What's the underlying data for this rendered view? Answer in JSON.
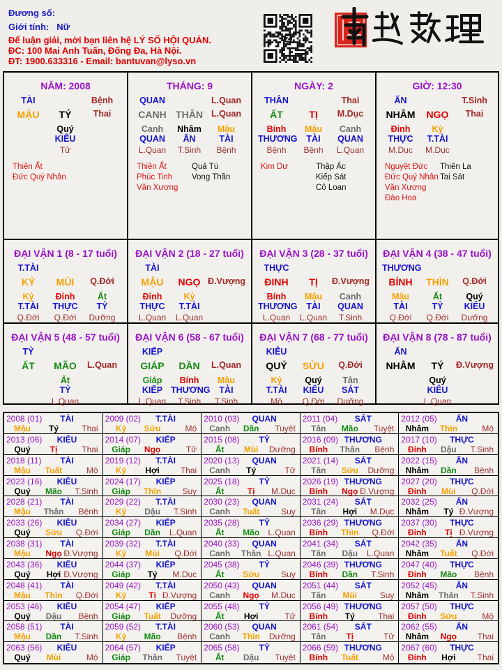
{
  "header": {
    "duong_so_label": "Đương số:",
    "gioi_tinh_label": "Giới tính:",
    "gioi_tinh_value": "Nữ",
    "contact_line1": "Để luận giải, mời bạn liên hệ LÝ SỐ HỘI QUÁN.",
    "contact_line2": "ĐC: 100 Mai Anh Tuấn, Đống Đa, Hà Nội.",
    "contact_line3": "ĐT: 1900.633316 - Email: bantuvan@lyso.vn",
    "logo_text": "南越數理",
    "qr_icon": "qr-code-icon"
  },
  "colors": {
    "title": "#9a12c8",
    "god": "#1414d0",
    "stage": "#a02828",
    "star_good": "#d81414",
    "elements": {
      "giáp": "#138a13",
      "ất": "#138a13",
      "bính": "#e00000",
      "đinh": "#e00000",
      "mậu": "#f5a000",
      "kỷ": "#f5a000",
      "canh": "#6e6e6e",
      "tân": "#6e6e6e",
      "nhâm": "#000000",
      "quý": "#000000",
      "tý": "#000000",
      "sửu": "#f5a000",
      "dần": "#138a13",
      "mão": "#138a13",
      "thìn": "#f5a000",
      "tị": "#e00000",
      "ngọ": "#e00000",
      "mùi": "#f5a000",
      "thân": "#6e6e6e",
      "dậu": "#6e6e6e",
      "tuất": "#f5a000",
      "hợi": "#000000"
    }
  },
  "pillars": [
    {
      "title": "NĂM: 2008",
      "god": "TÀI",
      "top_stage": "Bệnh",
      "stem": "MẬU",
      "branch": "TÝ",
      "stage": "Thai",
      "hidden": [
        {
          "stem": "Quý",
          "god": "KIÊU",
          "stage": "Tử"
        }
      ],
      "stars_left": [
        "Thiên Ất",
        "Đức Quý Nhân"
      ],
      "stars_right": []
    },
    {
      "title": "THÁNG: 9",
      "god": "QUAN",
      "top_stage": "L.Quan",
      "stem": "CANH",
      "branch": "THÂN",
      "stage": "L.Quan",
      "hidden": [
        {
          "stem": "Canh",
          "god": "QUAN",
          "stage": "L.Quan"
        },
        {
          "stem": "Nhâm",
          "god": "ẤN",
          "stage": "T.Sinh"
        },
        {
          "stem": "Mậu",
          "god": "TÀI",
          "stage": "Bệnh"
        }
      ],
      "stars_left": [
        "Thiên Ất",
        "Phúc Tinh",
        "Văn Xương"
      ],
      "stars_right": [
        "Quả Tú",
        "Vong Thần"
      ]
    },
    {
      "title": "NGÀY: 2",
      "god": "THÂN",
      "top_stage": "Thai",
      "stem": "ẤT",
      "branch": "TỊ",
      "stage": "M.Dục",
      "hidden": [
        {
          "stem": "Bính",
          "god": "THƯƠNG",
          "stage": "Bệnh"
        },
        {
          "stem": "Mậu",
          "god": "TÀI",
          "stage": "Bệnh"
        },
        {
          "stem": "Canh",
          "god": "QUAN",
          "stage": "L.Quan"
        }
      ],
      "stars_left": [
        "Kim Dư"
      ],
      "stars_right": [
        "Thập Ác",
        "Kiếp Sát",
        "Cô Loan"
      ]
    },
    {
      "title": "GIỜ: 12:30",
      "god": "ẤN",
      "top_stage": "T.Sinh",
      "stem": "NHÂM",
      "branch": "NGỌ",
      "stage": "Thai",
      "hidden": [
        {
          "stem": "Đinh",
          "god": "THỰC",
          "stage": "M.Dục"
        },
        {
          "stem": "Kỷ",
          "god": "T.TÀI",
          "stage": "M.Dục"
        }
      ],
      "stars_left": [
        "Nguyệt Đức",
        "Đức Quý Nhân",
        "Văn Xương",
        "Đào Hoa"
      ],
      "stars_right": [
        "Thiên La",
        "Tai Sát"
      ]
    }
  ],
  "dai_van": [
    {
      "title": "ĐẠI VẬN 1 (8 - 17 tuổi)",
      "god": "T.TÀI",
      "stem": "KỶ",
      "branch": "MÙI",
      "stage": "Q.Đới",
      "hidden": [
        {
          "stem": "Kỷ",
          "god": "T.TÀI",
          "stage": "Q.Đới"
        },
        {
          "stem": "Đinh",
          "god": "THỰC",
          "stage": "Q.Đới"
        },
        {
          "stem": "Ất",
          "god": "TỶ",
          "stage": "Dưỡng"
        }
      ]
    },
    {
      "title": "ĐẠI VẬN 2 (18 - 27 tuổi)",
      "god": "TÀI",
      "stem": "MẬU",
      "branch": "NGỌ",
      "stage": "Đ.Vượng",
      "hidden": [
        {
          "stem": "Đinh",
          "god": "THỰC",
          "stage": "L.Quan"
        },
        {
          "stem": "Kỷ",
          "god": "T.TÀI",
          "stage": "L.Quan"
        }
      ]
    },
    {
      "title": "ĐẠI VẬN 3 (28 - 37 tuổi)",
      "god": "THỰC",
      "stem": "ĐINH",
      "branch": "TỊ",
      "stage": "Đ.Vượng",
      "hidden": [
        {
          "stem": "Bính",
          "god": "THƯƠNG",
          "stage": "L.Quan"
        },
        {
          "stem": "Mậu",
          "god": "TÀI",
          "stage": "L.Quan"
        },
        {
          "stem": "Canh",
          "god": "QUAN",
          "stage": "T.Sinh"
        }
      ]
    },
    {
      "title": "ĐẠI VẬN 4 (38 - 47 tuổi)",
      "god": "THƯƠNG",
      "stem": "BÍNH",
      "branch": "THÌN",
      "stage": "Q.Đới",
      "hidden": [
        {
          "stem": "Mậu",
          "god": "TÀI",
          "stage": "Q.Đới"
        },
        {
          "stem": "Ất",
          "god": "TỶ",
          "stage": "Q.Đới"
        },
        {
          "stem": "Quý",
          "god": "KIÊU",
          "stage": "Dưỡng"
        }
      ]
    },
    {
      "title": "ĐẠI VẬN 5 (48 - 57 tuổi)",
      "god": "TỶ",
      "stem": "ẤT",
      "branch": "MÃO",
      "stage": "L.Quan",
      "hidden": [
        {
          "stem": "Ất",
          "god": "TỶ",
          "stage": "L.Quan"
        }
      ]
    },
    {
      "title": "ĐẠI VẬN 6 (58 - 67 tuổi)",
      "god": "KIẾP",
      "stem": "GIÁP",
      "branch": "DẦN",
      "stage": "L.Quan",
      "hidden": [
        {
          "stem": "Giáp",
          "god": "KIẾP",
          "stage": "L.Quan"
        },
        {
          "stem": "Bính",
          "god": "THƯƠNG",
          "stage": "T.Sinh"
        },
        {
          "stem": "Mậu",
          "god": "TÀI",
          "stage": "T.Sinh"
        }
      ]
    },
    {
      "title": "ĐẠI VẬN 7 (68 - 77 tuổi)",
      "god": "KIÊU",
      "stem": "QUÝ",
      "branch": "SỬU",
      "stage": "Q.Đới",
      "hidden": [
        {
          "stem": "Kỷ",
          "god": "T.TÀI",
          "stage": "Mộ"
        },
        {
          "stem": "Quý",
          "god": "KIÊU",
          "stage": "Q.Đới"
        },
        {
          "stem": "Tân",
          "god": "SÁT",
          "stage": "Dưỡng"
        }
      ]
    },
    {
      "title": "ĐẠI VẬN 8 (78 - 87 tuổi)",
      "god": "ẤN",
      "stem": "NHÂM",
      "branch": "TÝ",
      "stage": "Đ.Vượng",
      "hidden": [
        {
          "stem": "Quý",
          "god": "KIÊU",
          "stage": "L.Quan"
        }
      ]
    }
  ],
  "annual": [
    [
      "2008 (01)",
      "TÀI",
      "Mậu",
      "Tý",
      "Thai"
    ],
    [
      "2009 (02)",
      "T.TÀI",
      "Kỷ",
      "Sửu",
      "Mộ"
    ],
    [
      "2010 (03)",
      "QUAN",
      "Canh",
      "Dần",
      "Tuyệt"
    ],
    [
      "2011 (04)",
      "SÁT",
      "Tân",
      "Mão",
      "Tuyệt"
    ],
    [
      "2012 (05)",
      "ẤN",
      "Nhâm",
      "Thìn",
      "Mộ"
    ],
    [
      "2013 (06)",
      "KIÊU",
      "Quý",
      "Tị",
      "Thai"
    ],
    [
      "2014 (07)",
      "KIẾP",
      "Giáp",
      "Ngọ",
      "Tử"
    ],
    [
      "2015 (08)",
      "TỶ",
      "Ất",
      "Mùi",
      "Dưỡng"
    ],
    [
      "2016 (09)",
      "THƯƠNG",
      "Bính",
      "Thân",
      "Bệnh"
    ],
    [
      "2017 (10)",
      "THỰC",
      "Đinh",
      "Dậu",
      "T.Sinh"
    ],
    [
      "2018 (11)",
      "TÀI",
      "Mậu",
      "Tuất",
      "Mộ"
    ],
    [
      "2019 (12)",
      "T.TÀI",
      "Kỷ",
      "Hợi",
      "Thai"
    ],
    [
      "2020 (13)",
      "QUAN",
      "Canh",
      "Tý",
      "Tử"
    ],
    [
      "2021 (14)",
      "SÁT",
      "Tân",
      "Sửu",
      "Dưỡng"
    ],
    [
      "2022 (15)",
      "ẤN",
      "Nhâm",
      "Dần",
      "Bệnh"
    ],
    [
      "2023 (16)",
      "KIÊU",
      "Quý",
      "Mão",
      "T.Sinh"
    ],
    [
      "2024 (17)",
      "KIẾP",
      "Giáp",
      "Thìn",
      "Suy"
    ],
    [
      "2025 (18)",
      "TỶ",
      "Ất",
      "Tị",
      "M.Dục"
    ],
    [
      "2026 (19)",
      "THƯƠNG",
      "Bính",
      "Ngọ",
      "Đ.Vượng"
    ],
    [
      "2027 (20)",
      "THỰC",
      "Đinh",
      "Mùi",
      "Q.Đới"
    ],
    [
      "2028 (21)",
      "TÀI",
      "Mậu",
      "Thân",
      "Bệnh"
    ],
    [
      "2029 (22)",
      "T.TÀI",
      "Kỷ",
      "Dậu",
      "T.Sinh"
    ],
    [
      "2030 (23)",
      "QUAN",
      "Canh",
      "Tuất",
      "Suy"
    ],
    [
      "2031 (24)",
      "SÁT",
      "Tân",
      "Hợi",
      "M.Dục"
    ],
    [
      "2032 (25)",
      "ẤN",
      "Nhâm",
      "Tý",
      "Đ.Vượng"
    ],
    [
      "2033 (26)",
      "KIÊU",
      "Quý",
      "Sửu",
      "Q.Đới"
    ],
    [
      "2034 (27)",
      "KIẾP",
      "Giáp",
      "Dần",
      "L.Quan"
    ],
    [
      "2035 (28)",
      "TỶ",
      "Ất",
      "Mão",
      "L.Quan"
    ],
    [
      "2036 (29)",
      "THƯƠNG",
      "Bính",
      "Thìn",
      "Q.Đới"
    ],
    [
      "2037 (30)",
      "THỰC",
      "Đinh",
      "Tị",
      "Đ.Vượng"
    ],
    [
      "2038 (31)",
      "TÀI",
      "Mậu",
      "Ngọ",
      "Đ.Vượng"
    ],
    [
      "2039 (32)",
      "T.TÀI",
      "Kỷ",
      "Mùi",
      "Q.Đới"
    ],
    [
      "2040 (33)",
      "QUAN",
      "Canh",
      "Thân",
      "L.Quan"
    ],
    [
      "2041 (34)",
      "SÁT",
      "Tân",
      "Dậu",
      "L.Quan"
    ],
    [
      "2042 (35)",
      "ẤN",
      "Nhâm",
      "Tuất",
      "Q.Đới"
    ],
    [
      "2043 (36)",
      "KIÊU",
      "Quý",
      "Hợi",
      "Đ.Vượng"
    ],
    [
      "2044 (37)",
      "KIẾP",
      "Giáp",
      "Tý",
      "M.Dục"
    ],
    [
      "2045 (38)",
      "TỶ",
      "Ất",
      "Sửu",
      "Suy"
    ],
    [
      "2046 (39)",
      "THƯƠNG",
      "Bính",
      "Dần",
      "T.Sinh"
    ],
    [
      "2047 (40)",
      "THỰC",
      "Đinh",
      "Mão",
      "Bệnh"
    ],
    [
      "2048 (41)",
      "TÀI",
      "Mậu",
      "Thìn",
      "Q.Đới"
    ],
    [
      "2049 (42)",
      "T.TÀI",
      "Kỷ",
      "Tị",
      "Đ.Vượng"
    ],
    [
      "2050 (43)",
      "QUAN",
      "Canh",
      "Ngọ",
      "M.Dục"
    ],
    [
      "2051 (44)",
      "SÁT",
      "Tân",
      "Mùi",
      "Suy"
    ],
    [
      "2052 (45)",
      "ẤN",
      "Nhâm",
      "Thân",
      "T.Sinh"
    ],
    [
      "2053 (46)",
      "KIÊU",
      "Quý",
      "Dậu",
      "Bệnh"
    ],
    [
      "2054 (47)",
      "KIẾP",
      "Giáp",
      "Tuất",
      "Dưỡng"
    ],
    [
      "2055 (48)",
      "TỶ",
      "Ất",
      "Hợi",
      "Tử"
    ],
    [
      "2056 (49)",
      "THƯƠNG",
      "Bính",
      "Tý",
      "Thai"
    ],
    [
      "2057 (50)",
      "THỰC",
      "Đinh",
      "Sửu",
      "Mộ"
    ],
    [
      "2058 (51)",
      "TÀI",
      "Mậu",
      "Dần",
      "T.Sinh"
    ],
    [
      "2059 (52)",
      "T.TÀI",
      "Kỷ",
      "Mão",
      "Bệnh"
    ],
    [
      "2060 (53)",
      "QUAN",
      "Canh",
      "Thìn",
      "Dưỡng"
    ],
    [
      "2061 (54)",
      "SÁT",
      "Tân",
      "Tị",
      "Tử"
    ],
    [
      "2062 (55)",
      "ẤN",
      "Nhâm",
      "Ngọ",
      "Thai"
    ],
    [
      "2063 (56)",
      "KIÊU",
      "Quý",
      "Mùi",
      "Mộ"
    ],
    [
      "2064 (57)",
      "KIẾP",
      "Giáp",
      "Thân",
      "Tuyệt"
    ],
    [
      "2065 (58)",
      "TỶ",
      "Ất",
      "Dậu",
      "Tuyệt"
    ],
    [
      "2066 (59)",
      "THƯƠNG",
      "Bính",
      "Tuất",
      "Mộ"
    ],
    [
      "2067 (60)",
      "THỰC",
      "Đinh",
      "Hợi",
      "Thai"
    ]
  ]
}
